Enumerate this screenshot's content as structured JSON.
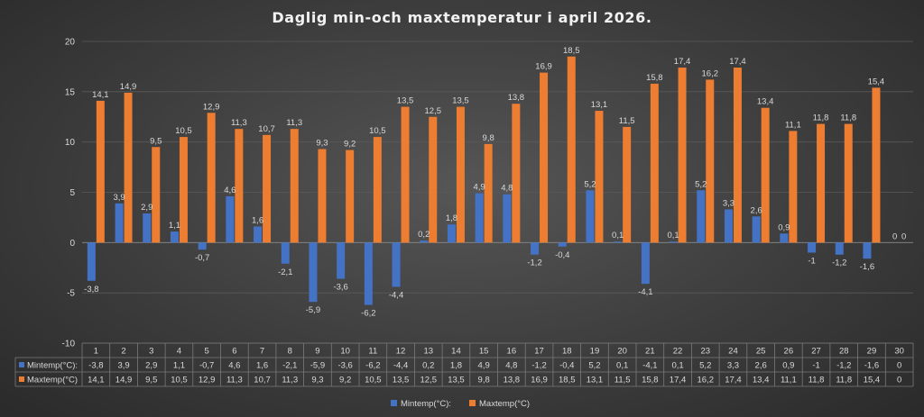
{
  "chart_data": {
    "type": "bar",
    "title": "Daglig min-och maxtemperatur i april 2026.",
    "categories": [
      "1",
      "2",
      "3",
      "4",
      "5",
      "6",
      "7",
      "8",
      "9",
      "10",
      "11",
      "12",
      "13",
      "14",
      "15",
      "16",
      "17",
      "18",
      "19",
      "20",
      "21",
      "22",
      "23",
      "24",
      "25",
      "26",
      "27",
      "28",
      "29",
      "30"
    ],
    "ylim": [
      -10,
      20
    ],
    "yticks": [
      "-10",
      "-5",
      "0",
      "5",
      "10",
      "15",
      "20"
    ],
    "grid": true,
    "legend": "bottom",
    "data_table": true,
    "series": [
      {
        "name": "Mintemp(°C):",
        "color": "#4472c4",
        "values": [
          -3.8,
          3.9,
          2.9,
          1.1,
          -0.7,
          4.6,
          1.6,
          -2.1,
          -5.9,
          -3.6,
          -6.2,
          -4.4,
          0.2,
          1.8,
          4.9,
          4.8,
          -1.2,
          -0.4,
          5.2,
          0.1,
          -4.1,
          0.1,
          5.2,
          3.3,
          2.6,
          0.9,
          -1,
          -1.2,
          -1.6,
          0
        ],
        "labels": [
          "-3,8",
          "3,9",
          "2,9",
          "1,1",
          "-0,7",
          "4,6",
          "1,6",
          "-2,1",
          "-5,9",
          "-3,6",
          "-6,2",
          "-4,4",
          "0,2",
          "1,8",
          "4,9",
          "4,8",
          "-1,2",
          "-0,4",
          "5,2",
          "0,1",
          "-4,1",
          "0,1",
          "5,2",
          "3,3",
          "2,6",
          "0,9",
          "-1",
          "-1,2",
          "-1,6",
          "0"
        ]
      },
      {
        "name": "Maxtemp(°C)",
        "color": "#ed7d31",
        "values": [
          14.1,
          14.9,
          9.5,
          10.5,
          12.9,
          11.3,
          10.7,
          11.3,
          9.3,
          9.2,
          10.5,
          13.5,
          12.5,
          13.5,
          9.8,
          13.8,
          16.9,
          18.5,
          13.1,
          11.5,
          15.8,
          17.4,
          16.2,
          17.4,
          13.4,
          11.1,
          11.8,
          11.8,
          15.4,
          0
        ],
        "labels": [
          "14,1",
          "14,9",
          "9,5",
          "10,5",
          "12,9",
          "11,3",
          "10,7",
          "11,3",
          "9,3",
          "9,2",
          "10,5",
          "13,5",
          "12,5",
          "13,5",
          "9,8",
          "13,8",
          "16,9",
          "18,5",
          "13,1",
          "11,5",
          "15,8",
          "17,4",
          "16,2",
          "17,4",
          "13,4",
          "11,1",
          "11,8",
          "11,8",
          "15,4",
          "0"
        ]
      }
    ]
  },
  "legend_bottom": {
    "min_label": "Mintemp(°C):",
    "max_label": "Maxtemp(°C)"
  }
}
